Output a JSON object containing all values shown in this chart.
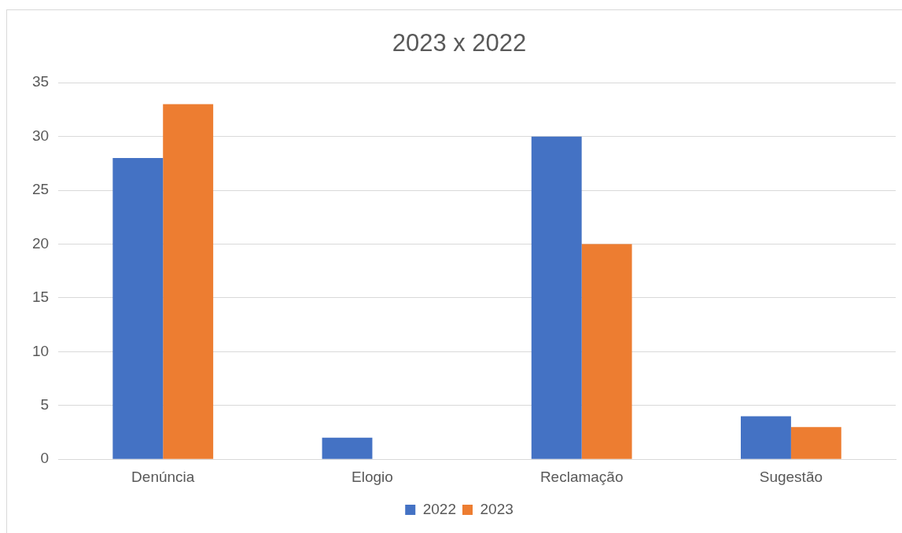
{
  "chart_data": {
    "type": "bar",
    "title": "2023 x 2022",
    "categories": [
      "Denúncia",
      "Elogio",
      "Reclamação",
      "Sugestão"
    ],
    "series": [
      {
        "name": "2022",
        "color": "#4472c4",
        "values": [
          28,
          2,
          30,
          4
        ]
      },
      {
        "name": "2023",
        "color": "#ed7d31",
        "values": [
          33,
          0,
          20,
          3
        ]
      }
    ],
    "ylim": [
      0,
      35
    ],
    "yticks": [
      0,
      5,
      10,
      15,
      20,
      25,
      30,
      35
    ],
    "grid": "y",
    "legend": "bottom"
  }
}
